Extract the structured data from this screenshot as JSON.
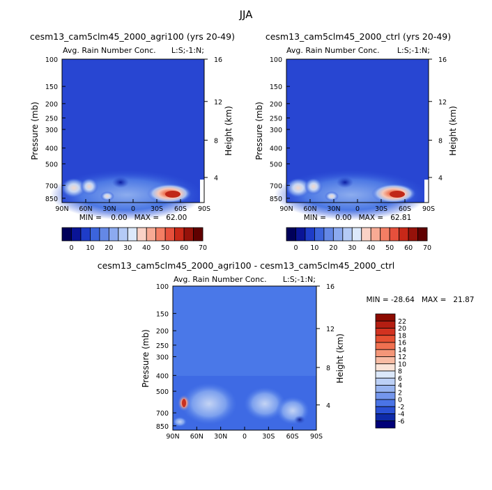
{
  "figure": {
    "title": "JJA"
  },
  "lat_ticks": [
    "90N",
    "60N",
    "30N",
    "0",
    "30S",
    "60S",
    "90S"
  ],
  "pressure_ticks": [
    "100",
    "150",
    "200",
    "250",
    "300",
    "400",
    "500",
    "700",
    "850"
  ],
  "height_ticks": [
    "16",
    "12",
    "8",
    "4"
  ],
  "chart_data": [
    {
      "type": "heatmap",
      "title": "cesm13_cam5clm45_2000_agri100 (yrs 20-49)",
      "subtitle_left": "Avg. Rain Number Conc.",
      "subtitle_right": "L:S;-1:N;",
      "xlabel": "",
      "ylabel": "Pressure (mb)",
      "ylabel_right": "Height (km)",
      "stats_text": "MIN =    0.00   MAX =   62.00",
      "min": 0.0,
      "max": 62.0,
      "xlim": [
        -90,
        90
      ],
      "ylim": [
        100,
        900
      ],
      "colorbar_labels": [
        "0",
        "10",
        "20",
        "30",
        "40",
        "50",
        "60",
        "70"
      ]
    },
    {
      "type": "heatmap",
      "title": "cesm13_cam5clm45_2000_ctrl (yrs 20-49)",
      "subtitle_left": "Avg. Rain Number Conc.",
      "subtitle_right": "L:S;-1:N;",
      "xlabel": "",
      "ylabel": "Pressure (mb)",
      "ylabel_right": "Height (km)",
      "stats_text": "MIN =    0.00   MAX =   62.81",
      "min": 0.0,
      "max": 62.81,
      "xlim": [
        -90,
        90
      ],
      "ylim": [
        100,
        900
      ],
      "colorbar_labels": [
        "0",
        "10",
        "20",
        "30",
        "40",
        "50",
        "60",
        "70"
      ]
    },
    {
      "type": "heatmap",
      "title": "cesm13_cam5clm45_2000_agri100 - cesm13_cam5clm45_2000_ctrl",
      "subtitle_left": "Avg. Rain Number Conc.",
      "subtitle_right": "L:S;-1:N;",
      "xlabel": "",
      "ylabel": "Pressure (mb)",
      "ylabel_right": "Height (km)",
      "stats_text": "MIN = -28.64   MAX =   21.87",
      "min": -28.64,
      "max": 21.87,
      "xlim": [
        -90,
        90
      ],
      "ylim": [
        100,
        900
      ],
      "colorbar_labels": [
        "22",
        "20",
        "18",
        "16",
        "14",
        "12",
        "10",
        "8",
        "6",
        "4",
        "2",
        "0",
        "-2",
        "-4",
        "-6"
      ]
    }
  ]
}
